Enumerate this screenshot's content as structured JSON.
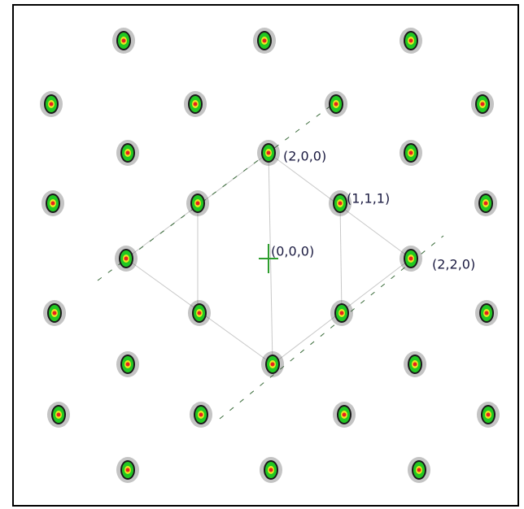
{
  "labels": [
    "(2,0,0)",
    "(1,1,1)",
    "(0,0,0)",
    "(2,2,0)"
  ]
}
